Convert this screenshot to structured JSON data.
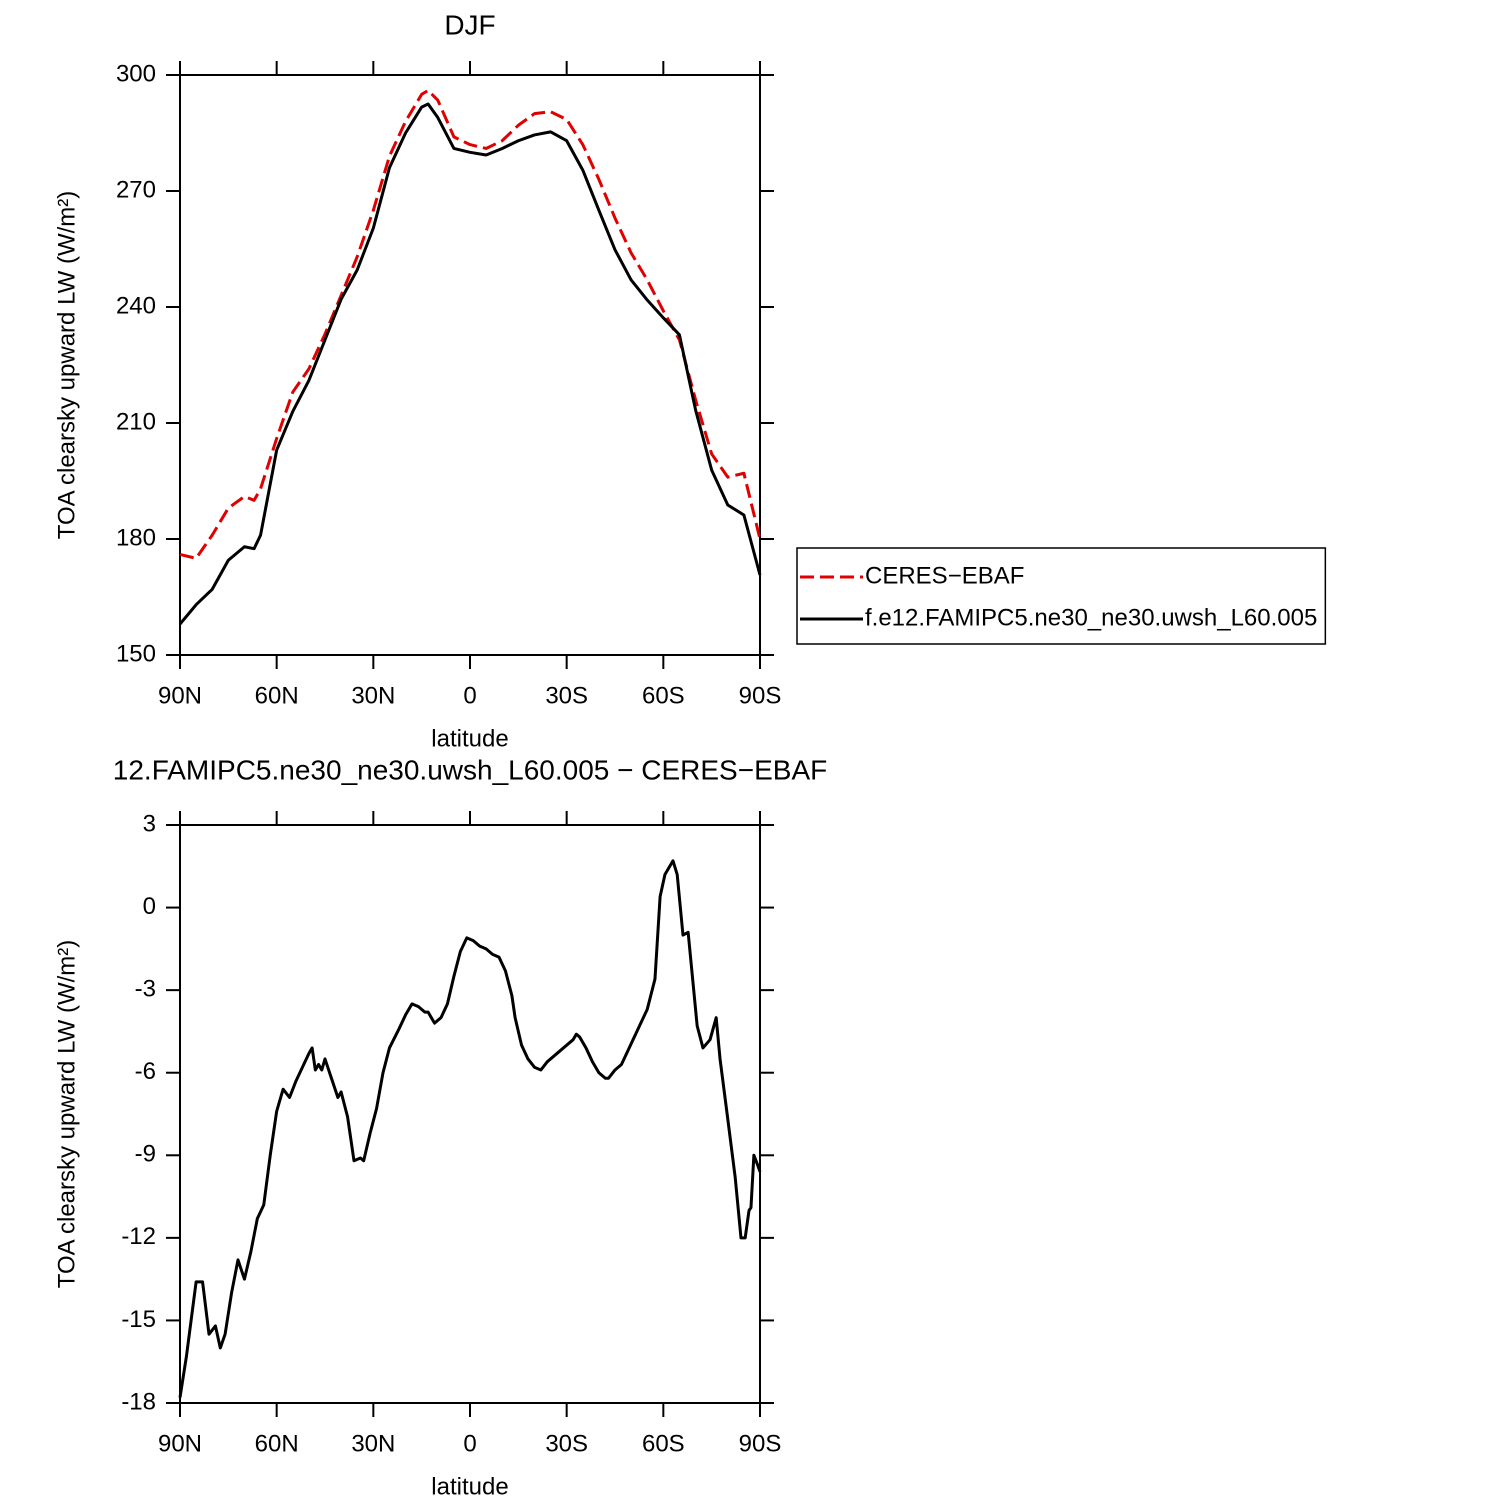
{
  "chart_data": [
    {
      "type": "line",
      "title": "DJF",
      "xlabel": "latitude",
      "ylabel": "TOA clearsky upward LW (W/m²)",
      "x": [
        90,
        85,
        80,
        75,
        70,
        67,
        65,
        60,
        55,
        50,
        45,
        40,
        35,
        30,
        25,
        20,
        15,
        13,
        10,
        5,
        0,
        -5,
        -10,
        -15,
        -20,
        -25,
        -30,
        -35,
        -40,
        -45,
        -50,
        -55,
        -60,
        -65,
        -70,
        -75,
        -80,
        -85,
        -90
      ],
      "series": [
        {
          "name": "CERES−EBAF",
          "color": "#e00000",
          "style": "dashed",
          "values": [
            176,
            175,
            181,
            188,
            191,
            190,
            193,
            206,
            218,
            224,
            233,
            243,
            253,
            265,
            279,
            288,
            295,
            296,
            293.5,
            284,
            282,
            281,
            283,
            287,
            290,
            290.5,
            288.5,
            282,
            273,
            263,
            254,
            247,
            239,
            231.5,
            216,
            202,
            196,
            197,
            180
          ]
        },
        {
          "name": "f.e12.FAMIPC5.ne30_ne30.uwsh_L60.005",
          "color": "#000000",
          "style": "solid",
          "values": [
            158,
            163,
            167,
            174.5,
            178,
            177.5,
            181,
            203,
            213,
            221,
            231.5,
            242,
            249.6,
            260.4,
            276,
            285,
            291.7,
            292.5,
            289,
            281,
            280,
            279.3,
            281,
            283,
            284.5,
            285.3,
            283,
            275.4,
            265,
            254.8,
            247,
            241.8,
            237.2,
            232.8,
            213.4,
            197.8,
            188.8,
            186.2,
            170.7
          ]
        }
      ],
      "xlim": [
        90,
        -90
      ],
      "xticks": [
        {
          "value": 90,
          "label": "90N"
        },
        {
          "value": 60,
          "label": "60N"
        },
        {
          "value": 30,
          "label": "30N"
        },
        0,
        {
          "value": -30,
          "label": "30S"
        },
        {
          "value": -60,
          "label": "60S"
        },
        {
          "value": -90,
          "label": "90S"
        }
      ],
      "ylim": [
        150,
        300
      ],
      "yticks": [
        150,
        180,
        210,
        240,
        270,
        300
      ],
      "legend": "right"
    },
    {
      "type": "line",
      "title": "12.FAMIPC5.ne30_ne30.uwsh_L60.005 − CERES−EBAF",
      "xlabel": "latitude",
      "ylabel": "TOA clearsky upward LW (W/m²)",
      "x": [
        90,
        88,
        85,
        83,
        81,
        79,
        77.5,
        76,
        74,
        72,
        70,
        68,
        66,
        64,
        62,
        60,
        58,
        56,
        54,
        52,
        50,
        49,
        48,
        47,
        46,
        45,
        43,
        41,
        40,
        38,
        36,
        34,
        33,
        31,
        29,
        27,
        25,
        22,
        20,
        18,
        16,
        14,
        13,
        11,
        9,
        7,
        5,
        3,
        1,
        -1,
        -3,
        -5,
        -7,
        -9,
        -11,
        -13,
        -14,
        -16,
        -18,
        -20,
        -22,
        -24,
        -26,
        -28,
        -30,
        -32,
        -33,
        -34,
        -36,
        -38,
        -40,
        -42,
        -43,
        -45,
        -47,
        -49,
        -51,
        -53,
        -55,
        -57.4,
        -59,
        -60.5,
        -63,
        -64.3,
        -66.1,
        -67.7,
        -70.5,
        -72.3,
        -74.5,
        -76.4,
        -77.6,
        -79.8,
        -82.3,
        -84.1,
        -85.4,
        -86.6,
        -87.2,
        -88.1,
        -89.1,
        -90
      ],
      "series": [
        {
          "color": "#000000",
          "style": "solid",
          "values": [
            -17.8,
            -16.3,
            -13.6,
            -13.6,
            -15.5,
            -15.2,
            -16,
            -15.5,
            -14,
            -12.8,
            -13.5,
            -12.5,
            -11.3,
            -10.8,
            -9,
            -7.4,
            -6.6,
            -6.9,
            -6.3,
            -5.8,
            -5.3,
            -5.1,
            -5.9,
            -5.7,
            -5.9,
            -5.5,
            -6.2,
            -6.9,
            -6.7,
            -7.6,
            -9.2,
            -9.1,
            -9.2,
            -8.2,
            -7.3,
            -6,
            -5.1,
            -4.4,
            -3.9,
            -3.5,
            -3.6,
            -3.8,
            -3.8,
            -4.2,
            -4,
            -3.5,
            -2.5,
            -1.6,
            -1.1,
            -1.2,
            -1.4,
            -1.5,
            -1.7,
            -1.8,
            -2.3,
            -3.2,
            -4,
            -5,
            -5.5,
            -5.8,
            -5.9,
            -5.6,
            -5.4,
            -5.2,
            -5,
            -4.8,
            -4.6,
            -4.7,
            -5.1,
            -5.6,
            -6,
            -6.2,
            -6.2,
            -5.9,
            -5.7,
            -5.2,
            -4.7,
            -4.2,
            -3.7,
            -2.6,
            0.4,
            1.2,
            1.7,
            1.2,
            -1,
            -0.9,
            -4.3,
            -5.1,
            -4.8,
            -4,
            -5.5,
            -7.5,
            -9.8,
            -12,
            -12,
            -11,
            -10.9,
            -9,
            -9.3,
            -9.6
          ]
        }
      ],
      "xlim": [
        90,
        -90
      ],
      "xticks": [
        {
          "value": 90,
          "label": "90N"
        },
        {
          "value": 60,
          "label": "60N"
        },
        {
          "value": 30,
          "label": "30N"
        },
        0,
        {
          "value": -30,
          "label": "30S"
        },
        {
          "value": -60,
          "label": "60S"
        },
        {
          "value": -90,
          "label": "90S"
        }
      ],
      "ylim": [
        -18,
        3
      ],
      "yticks": [
        -18,
        -15,
        -12,
        -9,
        -6,
        -3,
        0,
        3
      ]
    }
  ]
}
